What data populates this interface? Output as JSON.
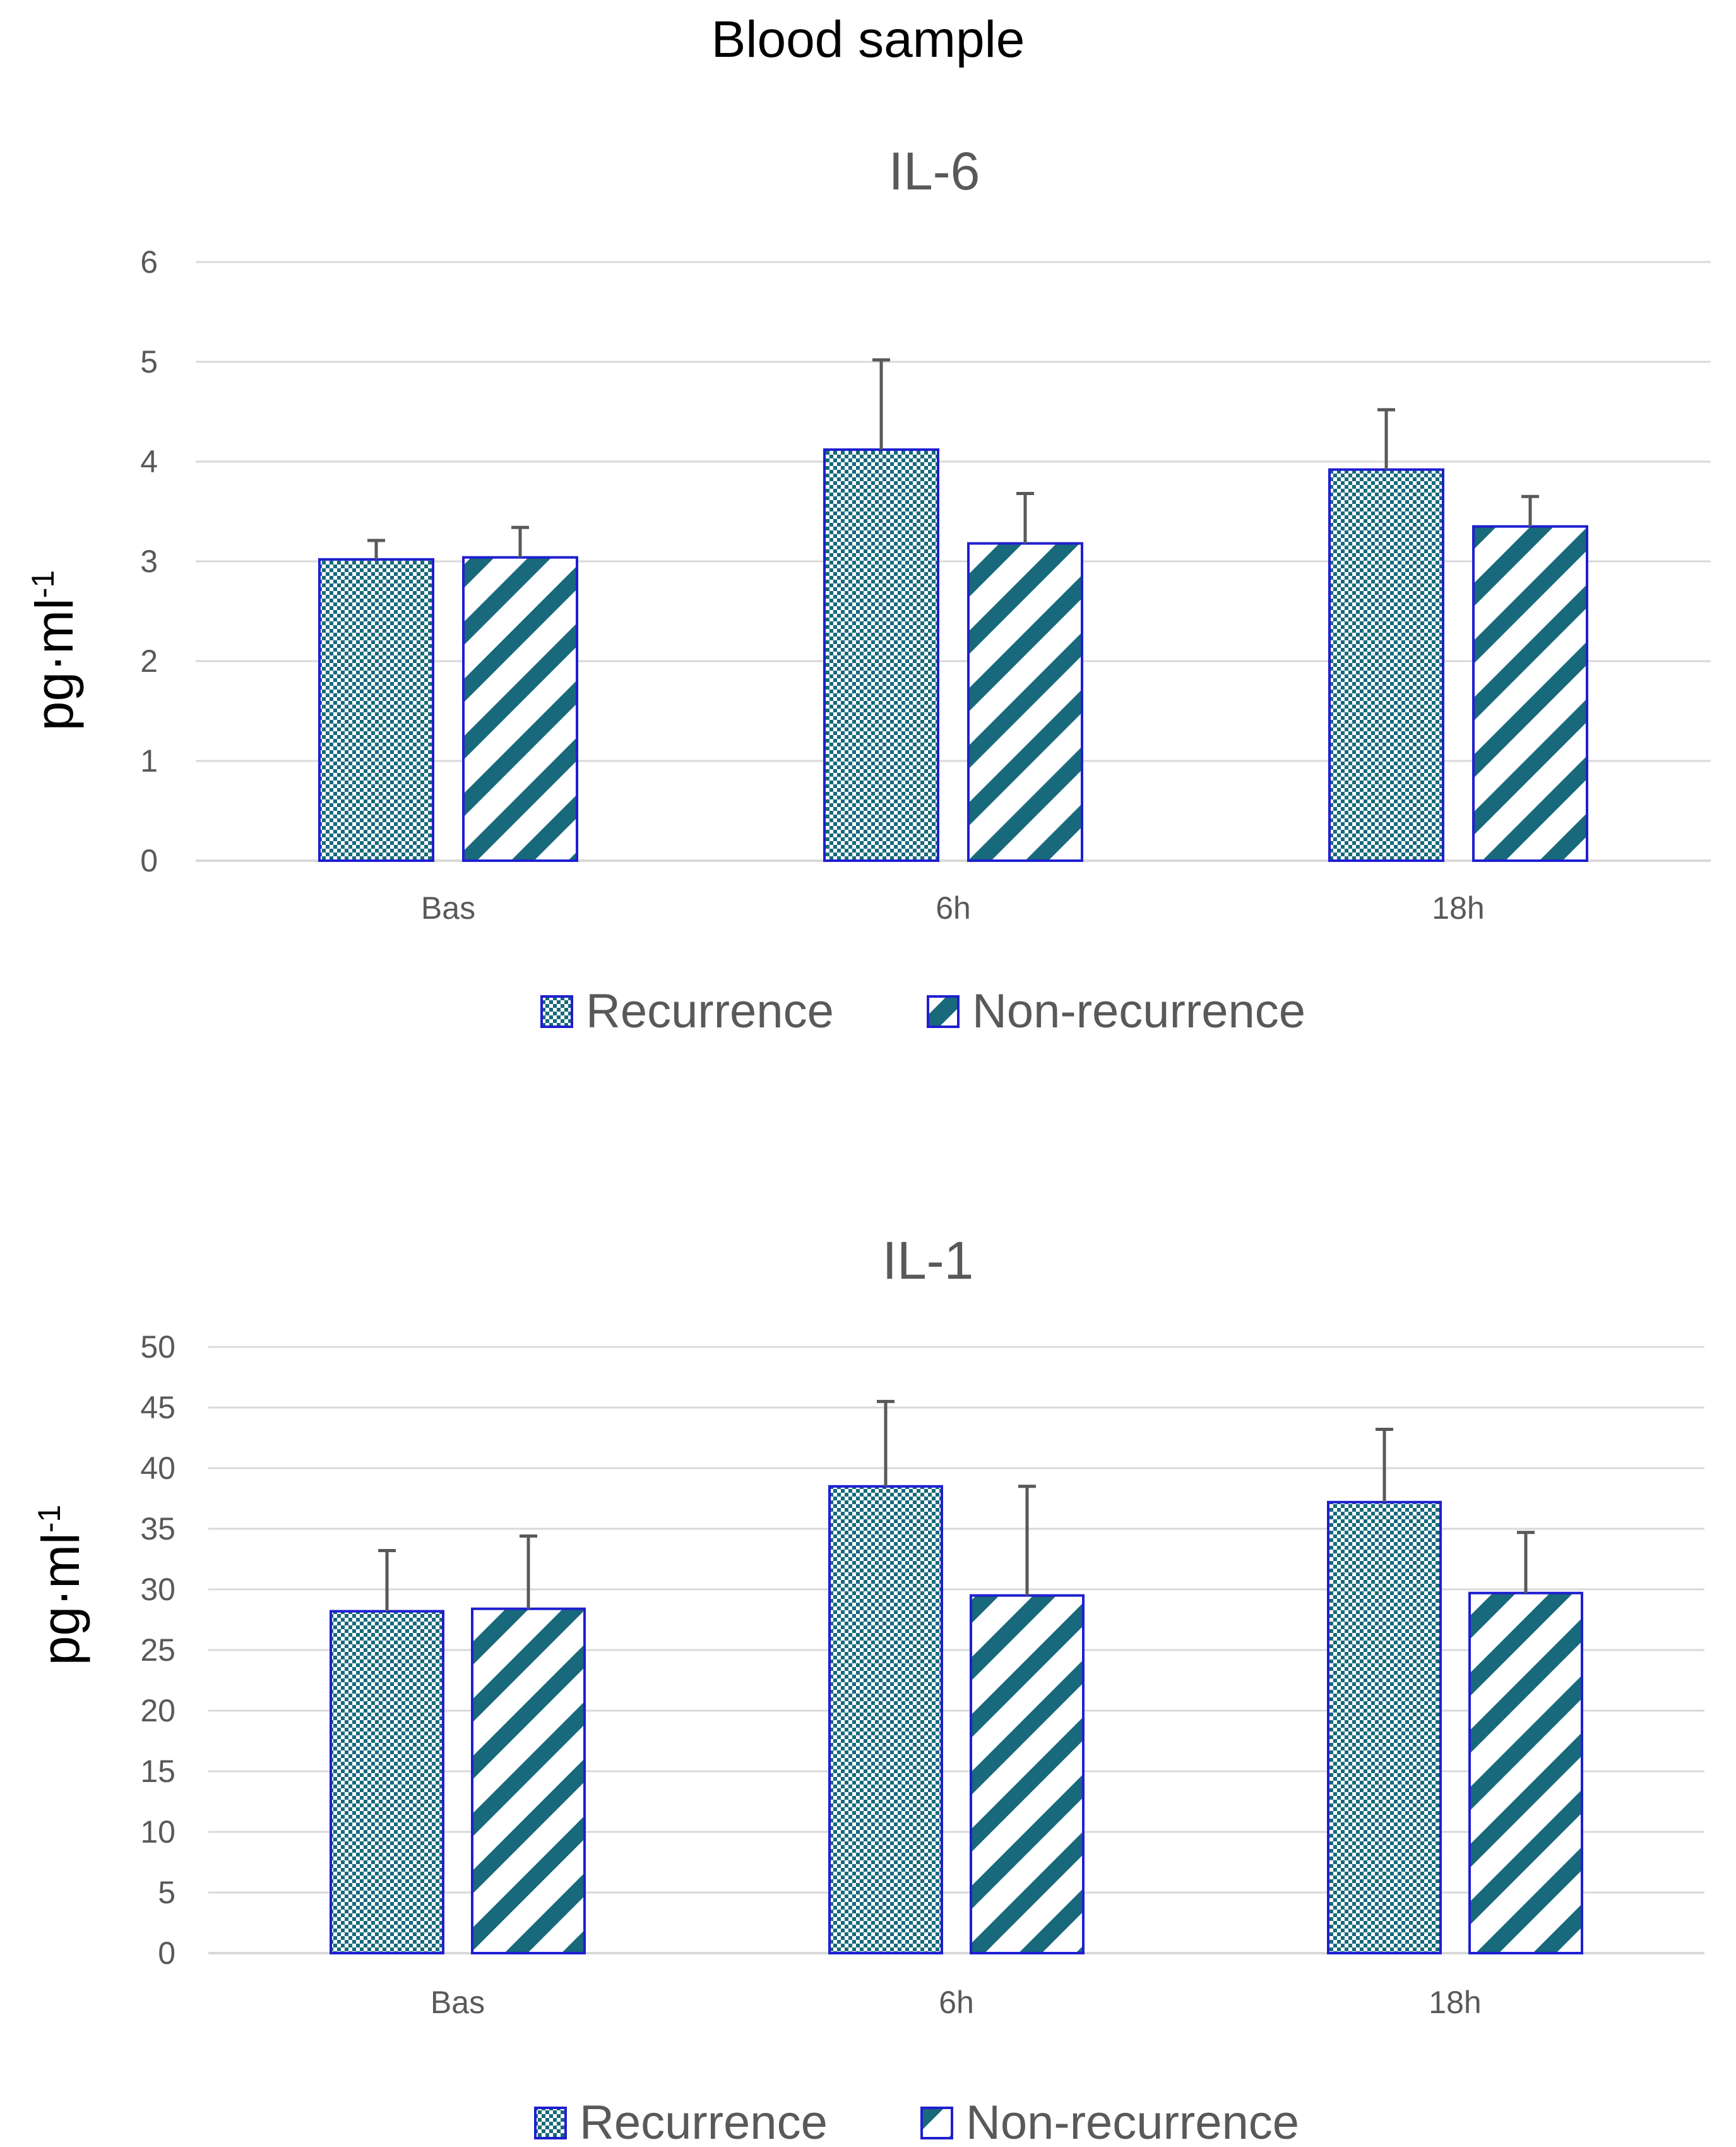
{
  "figure_title": "Blood sample",
  "colors": {
    "pattern_teal": "#17697b",
    "bar_outline": "#1f1fd0",
    "error_bar": "#595959",
    "grid": "#d9d9d9",
    "text_grey": "#595959"
  },
  "chart_data": [
    {
      "type": "bar",
      "title": "IL-6",
      "ylabel": "pg·ml",
      "ylabel_superscript": "-1",
      "xlabel": "",
      "categories": [
        "Bas",
        "6h",
        "18h"
      ],
      "ylim": [
        0,
        6
      ],
      "yticks": [
        "0",
        "1",
        "2",
        "3",
        "4",
        "5",
        "6"
      ],
      "grid": true,
      "legend_position": "bottom",
      "series": [
        {
          "name": "Recurrence",
          "pattern": "checker",
          "values": [
            3.02,
            4.12,
            3.92
          ],
          "errors": [
            0.19,
            0.9,
            0.6
          ]
        },
        {
          "name": "Non-recurrence",
          "pattern": "diagonal-stripes",
          "values": [
            3.04,
            3.18,
            3.35
          ],
          "errors": [
            0.3,
            0.5,
            0.3
          ]
        }
      ]
    },
    {
      "type": "bar",
      "title": "IL-1",
      "ylabel": "pg·ml",
      "ylabel_superscript": "-1",
      "xlabel": "",
      "categories": [
        "Bas",
        "6h",
        "18h"
      ],
      "ylim": [
        0,
        50
      ],
      "yticks": [
        "0",
        "5",
        "10",
        "15",
        "20",
        "25",
        "30",
        "35",
        "40",
        "45",
        "50"
      ],
      "grid": true,
      "legend_position": "bottom",
      "series": [
        {
          "name": "Recurrence",
          "pattern": "checker",
          "values": [
            28.2,
            38.5,
            37.2
          ],
          "errors": [
            5.0,
            7.0,
            6.0
          ]
        },
        {
          "name": "Non-recurrence",
          "pattern": "diagonal-stripes",
          "values": [
            28.4,
            29.5,
            29.7
          ],
          "errors": [
            6.0,
            9.0,
            5.0
          ]
        }
      ]
    }
  ]
}
